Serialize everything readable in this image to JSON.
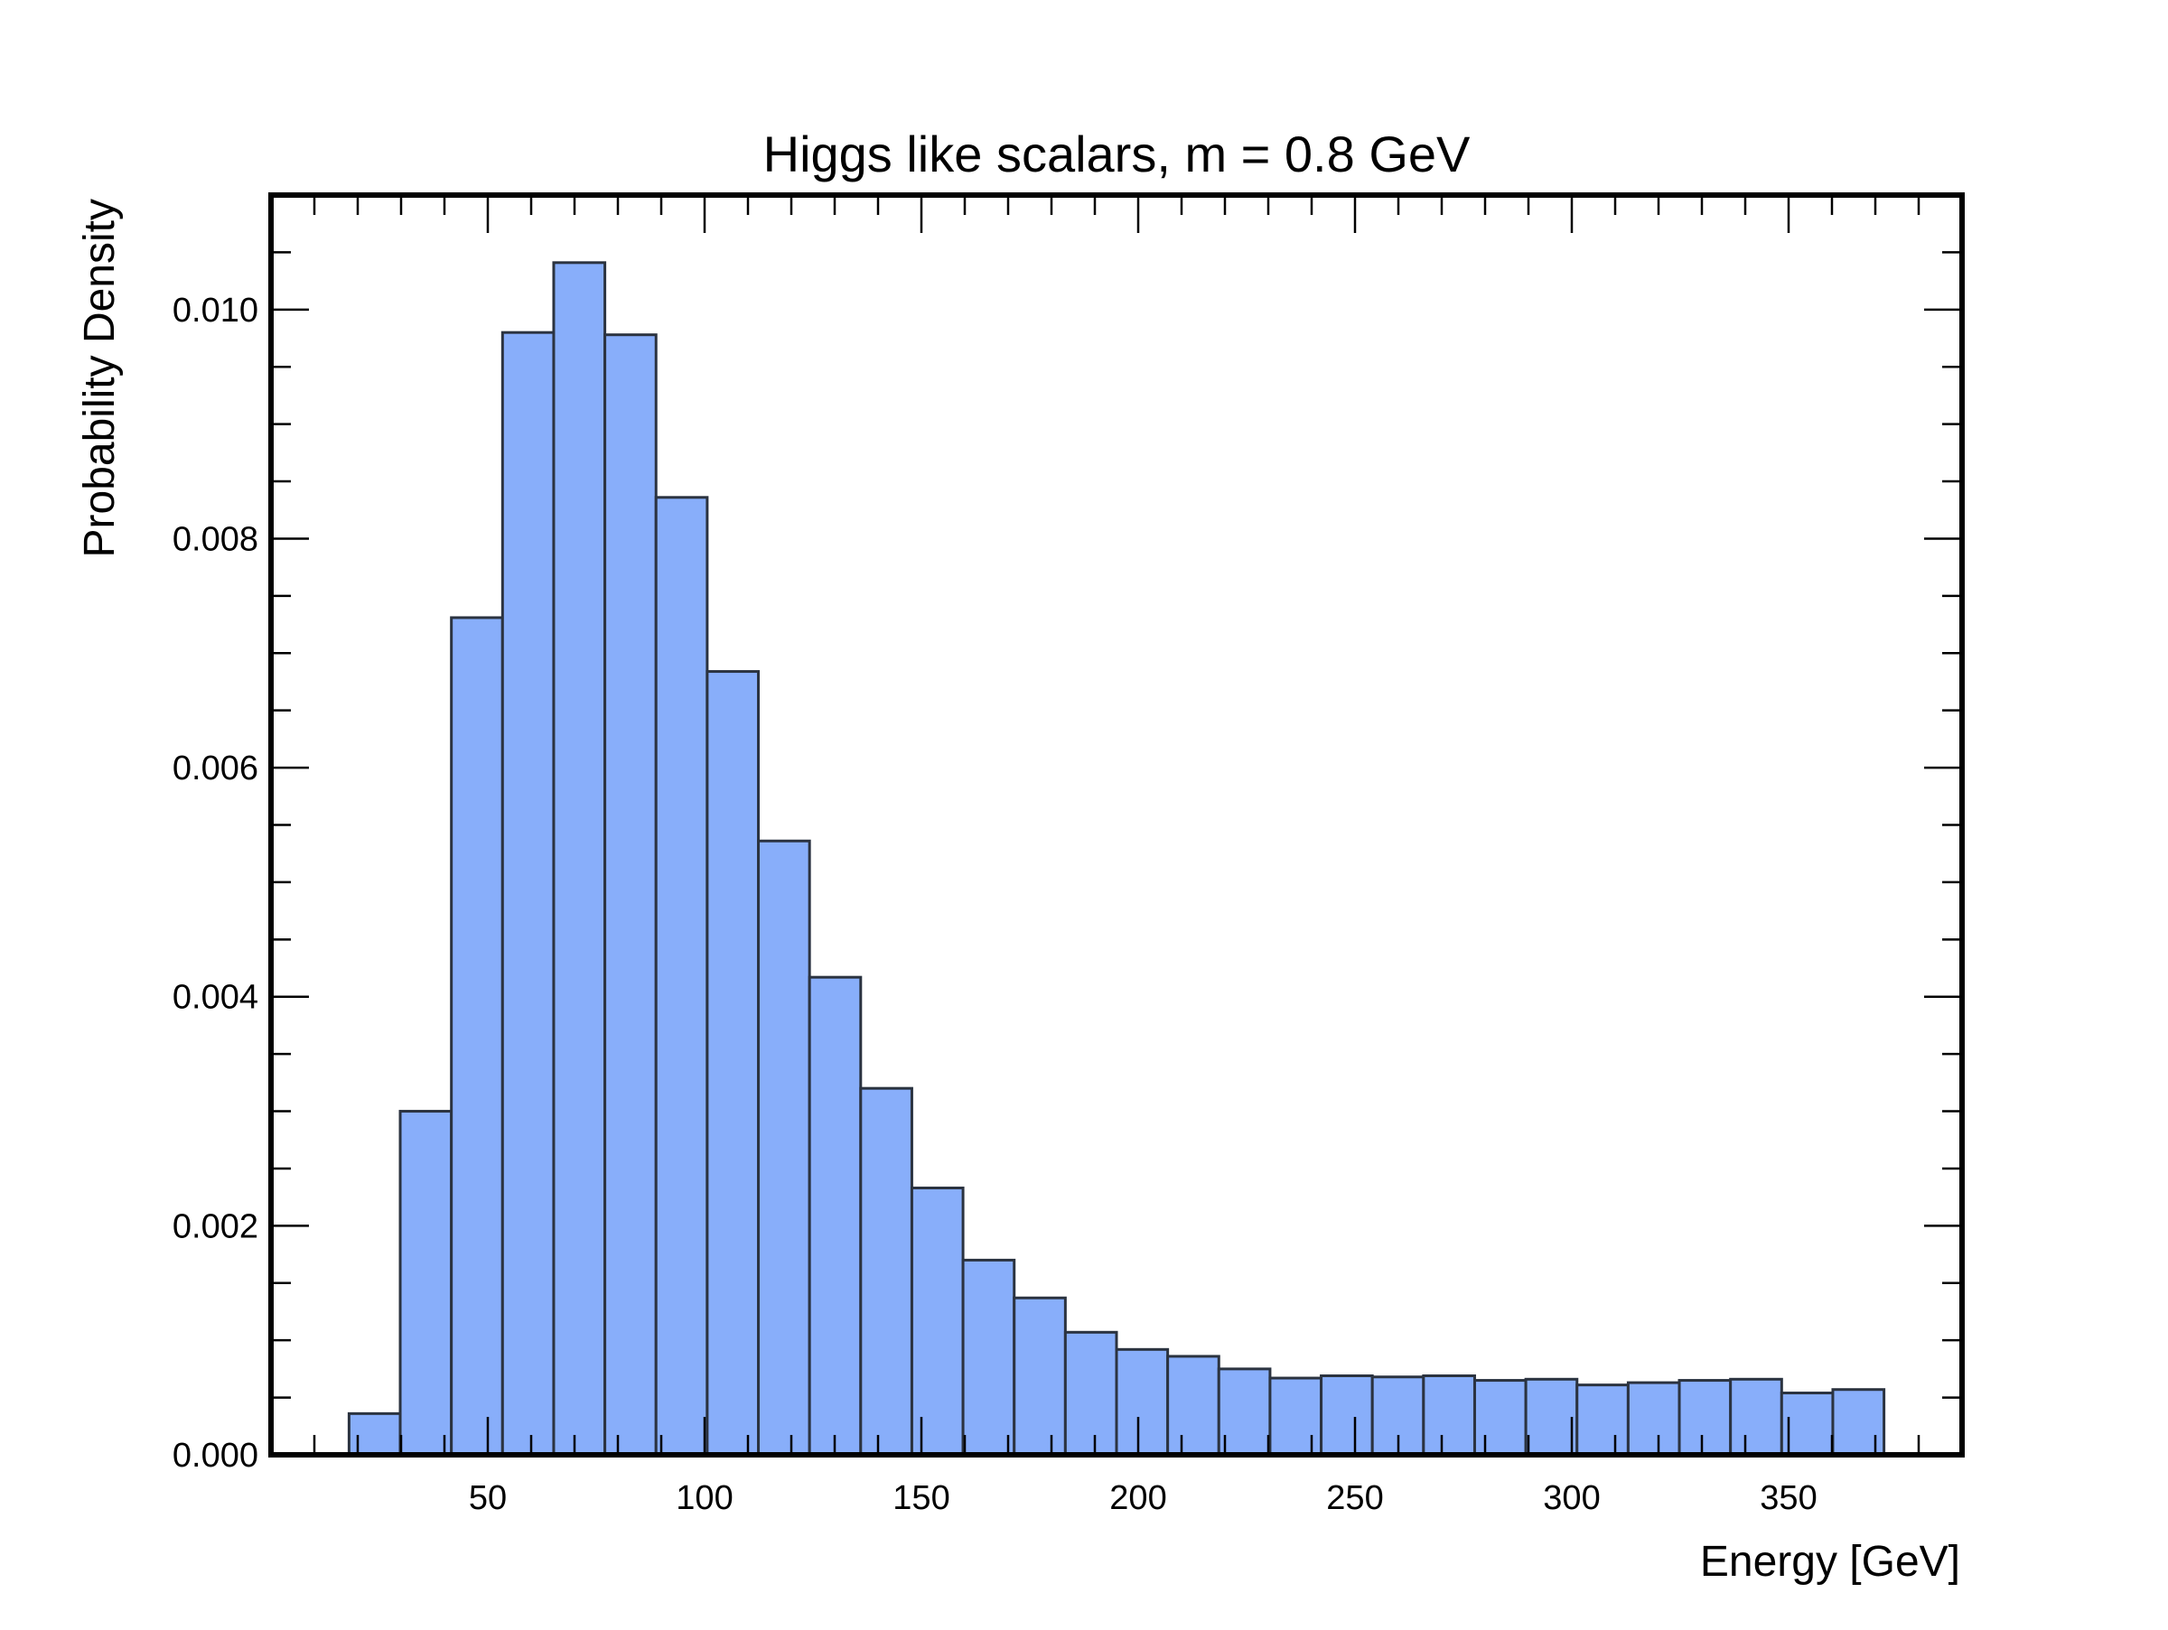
{
  "chart_data": {
    "type": "bar",
    "title": "Higgs like scalars, m = 0.8 GeV",
    "xlabel": "Energy [GeV]",
    "ylabel": "Probability Density",
    "xlim": [
      0,
      390
    ],
    "ylim": [
      0,
      0.011
    ],
    "x_major_ticks": [
      50,
      100,
      150,
      200,
      250,
      300,
      350
    ],
    "x_tick_labels": [
      "50",
      "100",
      "150",
      "200",
      "250",
      "300",
      "350"
    ],
    "x_minor_step": 10,
    "y_major_ticks": [
      0,
      0.002,
      0.004,
      0.006,
      0.008,
      0.01
    ],
    "y_tick_labels": [
      "0.000",
      "0.002",
      "0.004",
      "0.006",
      "0.008",
      "0.010"
    ],
    "y_minor_step": 0.0005,
    "grid": false,
    "legend": "none",
    "bin_edges": [
      18,
      29.8,
      41.6,
      53.4,
      65.2,
      77,
      88.8,
      100.6,
      112.4,
      124.2,
      136,
      147.8,
      159.6,
      171.4,
      183.2,
      195,
      206.8,
      218.6,
      230.4,
      242.2,
      254,
      265.8,
      277.6,
      289.4,
      301.2,
      313,
      324.8,
      336.6,
      348.4,
      360.2,
      372
    ],
    "values": [
      0.00036,
      0.003,
      0.00731,
      0.0098,
      0.01041,
      0.00978,
      0.00836,
      0.00684,
      0.00536,
      0.00417,
      0.0032,
      0.00233,
      0.0017,
      0.00137,
      0.00107,
      0.00092,
      0.00086,
      0.00075,
      0.00067,
      0.00069,
      0.00068,
      0.00069,
      0.00065,
      0.00066,
      0.00061,
      0.00063,
      0.00065,
      0.00066,
      0.00054,
      0.00057
    ],
    "colors": {
      "bar_fill": "#88aefa",
      "bar_edge": "#2b3340",
      "axes": "#000000"
    }
  }
}
